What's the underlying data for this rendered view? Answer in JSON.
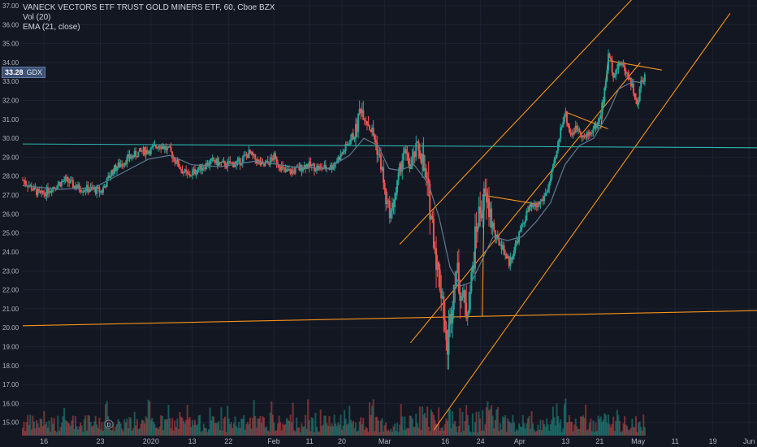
{
  "header": {
    "title": "VANECK VECTORS ETF TRUST GOLD MINERS ETF, 60, Cboe BZX",
    "vol_label": "Vol (20)",
    "ema_label": "EMA (21, close)"
  },
  "price_tag": {
    "value": "33.28",
    "symbol": "GDX",
    "color": "#3d5174"
  },
  "colors": {
    "background": "#131722",
    "grid": "#1e2230",
    "axis_text": "#b2b5be",
    "up": "#26a69a",
    "down": "#ef5350",
    "ema": "#5f7a8e",
    "trendline_orange": "#f7931a",
    "trendline_teal": "#2bb8b0"
  },
  "chart_data": {
    "type": "candlestick",
    "title": "VANECK VECTORS ETF TRUST GOLD MINERS ETF, 60, Cboe BZX",
    "ylim": [
      14.3,
      37.3
    ],
    "y_ticks": [
      15,
      16,
      17,
      18,
      19,
      20,
      21,
      22,
      23,
      24,
      25,
      26,
      27,
      28,
      29,
      30,
      31,
      32,
      33,
      34,
      35,
      36,
      37
    ],
    "y_tick_labels": [
      "15.00",
      "16.00",
      "17.00",
      "18.00",
      "19.00",
      "20.00",
      "21.00",
      "22.00",
      "23.00",
      "24.00",
      "25.00",
      "26.00",
      "27.00",
      "28.00",
      "29.00",
      "30.00",
      "31.00",
      "32.00",
      "33.00",
      "34.00",
      "35.00",
      "36.00",
      "37.00"
    ],
    "x_ticks": [
      {
        "label": "16",
        "x": 0.09
      },
      {
        "label": "23",
        "x": 1.66
      },
      {
        "label": "2020",
        "x": 3.07
      },
      {
        "label": "13",
        "x": 4.22
      },
      {
        "label": "22",
        "x": 5.23
      },
      {
        "label": "Feb",
        "x": 6.49
      },
      {
        "label": "11",
        "x": 7.49
      },
      {
        "label": "20",
        "x": 8.39
      },
      {
        "label": "Mar",
        "x": 9.58
      },
      {
        "label": "16",
        "x": 11.27
      },
      {
        "label": "24",
        "x": 12.25
      },
      {
        "label": "Apr",
        "x": 13.34
      },
      {
        "label": "13",
        "x": 14.62
      },
      {
        "label": "21",
        "x": 15.57
      },
      {
        "label": "May",
        "x": 16.64
      },
      {
        "label": "11",
        "x": 17.67
      },
      {
        "label": "19",
        "x": 18.72
      },
      {
        "label": "Jun",
        "x": 19.73
      }
    ],
    "x_range": [
      -0.5,
      19.95
    ],
    "series": [
      {
        "name": "GDX",
        "kind": "close_path",
        "points": [
          [
            -0.5,
            27.8
          ],
          [
            -0.2,
            27.3
          ],
          [
            0.0,
            27.0
          ],
          [
            0.4,
            27.5
          ],
          [
            0.7,
            27.8
          ],
          [
            1.0,
            27.4
          ],
          [
            1.4,
            27.3
          ],
          [
            1.7,
            27.2
          ],
          [
            2.0,
            28.3
          ],
          [
            2.4,
            28.9
          ],
          [
            2.8,
            29.3
          ],
          [
            3.1,
            29.4
          ],
          [
            3.3,
            29.7
          ],
          [
            3.6,
            29.3
          ],
          [
            3.9,
            28.4
          ],
          [
            4.1,
            28.0
          ],
          [
            4.4,
            28.4
          ],
          [
            4.8,
            28.8
          ],
          [
            5.1,
            28.6
          ],
          [
            5.5,
            28.7
          ],
          [
            5.8,
            29.2
          ],
          [
            6.2,
            28.5
          ],
          [
            6.5,
            29.0
          ],
          [
            6.8,
            28.2
          ],
          [
            7.1,
            28.3
          ],
          [
            7.4,
            28.6
          ],
          [
            7.8,
            28.4
          ],
          [
            8.1,
            28.5
          ],
          [
            8.4,
            29.2
          ],
          [
            8.8,
            30.5
          ],
          [
            8.9,
            31.7
          ],
          [
            9.1,
            30.9
          ],
          [
            9.3,
            30.0
          ],
          [
            9.5,
            28.4
          ],
          [
            9.6,
            26.8
          ],
          [
            9.75,
            26.0
          ],
          [
            9.9,
            27.2
          ],
          [
            10.1,
            29.3
          ],
          [
            10.3,
            28.5
          ],
          [
            10.5,
            29.6
          ],
          [
            10.6,
            29.0
          ],
          [
            10.8,
            27.0
          ],
          [
            10.95,
            24.9
          ],
          [
            11.05,
            23.1
          ],
          [
            11.2,
            21.6
          ],
          [
            11.3,
            18.7
          ],
          [
            11.4,
            20.3
          ],
          [
            11.55,
            23.2
          ],
          [
            11.7,
            22.0
          ],
          [
            11.85,
            20.8
          ],
          [
            12.0,
            22.5
          ],
          [
            12.15,
            25.6
          ],
          [
            12.35,
            26.8
          ],
          [
            12.5,
            26.2
          ],
          [
            12.65,
            24.8
          ],
          [
            12.85,
            24.3
          ],
          [
            13.05,
            23.4
          ],
          [
            13.25,
            24.5
          ],
          [
            13.45,
            25.6
          ],
          [
            13.6,
            26.3
          ],
          [
            13.8,
            26.4
          ],
          [
            14.0,
            26.8
          ],
          [
            14.15,
            27.5
          ],
          [
            14.35,
            29.0
          ],
          [
            14.5,
            30.7
          ],
          [
            14.6,
            31.4
          ],
          [
            14.75,
            30.2
          ],
          [
            14.95,
            30.6
          ],
          [
            15.15,
            30.0
          ],
          [
            15.35,
            30.4
          ],
          [
            15.55,
            30.9
          ],
          [
            15.7,
            32.4
          ],
          [
            15.82,
            34.5
          ],
          [
            15.95,
            33.4
          ],
          [
            16.15,
            34.0
          ],
          [
            16.35,
            33.4
          ],
          [
            16.5,
            32.6
          ],
          [
            16.62,
            31.6
          ],
          [
            16.72,
            33.0
          ],
          [
            16.83,
            33.3
          ]
        ],
        "vol_min": 0,
        "vol_max": 10
      },
      {
        "name": "EMA (21, close)",
        "kind": "line",
        "points": [
          [
            -0.5,
            27.5
          ],
          [
            0.5,
            27.3
          ],
          [
            1.5,
            27.4
          ],
          [
            2.3,
            28.2
          ],
          [
            3.0,
            28.9
          ],
          [
            3.6,
            29.1
          ],
          [
            4.2,
            28.6
          ],
          [
            5.0,
            28.5
          ],
          [
            6.0,
            28.8
          ],
          [
            7.0,
            28.5
          ],
          [
            8.0,
            28.4
          ],
          [
            8.6,
            29.1
          ],
          [
            9.0,
            30.0
          ],
          [
            9.4,
            29.6
          ],
          [
            9.7,
            28.4
          ],
          [
            10.0,
            28.3
          ],
          [
            10.4,
            28.6
          ],
          [
            10.8,
            27.6
          ],
          [
            11.1,
            25.8
          ],
          [
            11.4,
            23.2
          ],
          [
            11.7,
            22.2
          ],
          [
            12.0,
            22.4
          ],
          [
            12.3,
            23.6
          ],
          [
            12.6,
            24.8
          ],
          [
            13.0,
            24.6
          ],
          [
            13.4,
            24.8
          ],
          [
            13.8,
            25.6
          ],
          [
            14.2,
            26.6
          ],
          [
            14.6,
            28.6
          ],
          [
            15.0,
            29.6
          ],
          [
            15.4,
            30.0
          ],
          [
            15.8,
            31.3
          ],
          [
            16.1,
            32.6
          ],
          [
            16.5,
            33.0
          ],
          [
            16.83,
            32.9
          ]
        ]
      }
    ],
    "trendlines": [
      {
        "name": "channel-upper",
        "color": "orange",
        "from": [
          10.0,
          24.4
        ],
        "to": [
          16.9,
          38.2
        ]
      },
      {
        "name": "channel-lower",
        "color": "orange",
        "from": [
          10.95,
          14.6
        ],
        "to": [
          19.2,
          36.6
        ]
      },
      {
        "name": "channel-mid",
        "color": "orange",
        "from": [
          10.3,
          19.2
        ],
        "to": [
          16.7,
          34.0
        ]
      },
      {
        "name": "support-line",
        "color": "orange",
        "from": [
          -0.5,
          20.1
        ],
        "to": [
          19.95,
          20.9
        ]
      },
      {
        "name": "horizontal-resistance",
        "color": "teal",
        "from": [
          -0.5,
          29.7
        ],
        "to": [
          19.95,
          29.5
        ]
      },
      {
        "name": "pennant-1-top",
        "color": "orange",
        "from": [
          12.3,
          27.0
        ],
        "to": [
          13.9,
          26.5
        ]
      },
      {
        "name": "pennant-1-bottom",
        "color": "orange",
        "from": [
          12.3,
          20.6
        ],
        "to": [
          12.35,
          27.0
        ]
      },
      {
        "name": "pennant-2-top",
        "color": "orange",
        "from": [
          14.6,
          31.4
        ],
        "to": [
          15.8,
          30.5
        ]
      },
      {
        "name": "pennant-3-top",
        "color": "orange",
        "from": [
          15.8,
          34.1
        ],
        "to": [
          17.3,
          33.6
        ]
      },
      {
        "name": "pennant-3-left",
        "color": "orange",
        "from": [
          15.6,
          30.5
        ],
        "to": [
          15.8,
          34.1
        ]
      }
    ],
    "marker": {
      "label": "D",
      "x": 1.9
    }
  }
}
